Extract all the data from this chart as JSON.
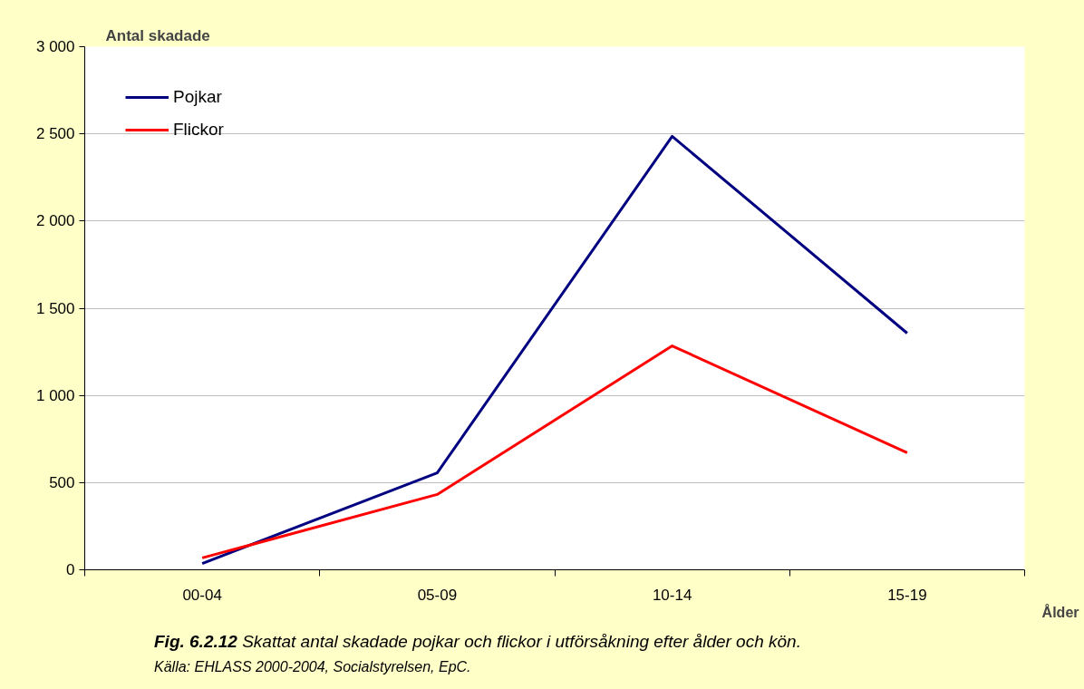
{
  "chart_data": {
    "type": "line",
    "ylabel": "Antal skadade",
    "xlabel": "Ålder",
    "categories": [
      "00-04",
      "05-09",
      "10-14",
      "15-19"
    ],
    "series": [
      {
        "name": "Pojkar",
        "color": "#000080",
        "values": [
          36,
          556,
          2486,
          1357
        ]
      },
      {
        "name": "Flickor",
        "color": "#ff0000",
        "values": [
          68,
          432,
          1284,
          671
        ]
      }
    ],
    "ylim": [
      0,
      3000
    ],
    "yticks": [
      {
        "value": 0,
        "label": "0"
      },
      {
        "value": 500,
        "label": "500"
      },
      {
        "value": 1000,
        "label": "1 000"
      },
      {
        "value": 1500,
        "label": "1 500"
      },
      {
        "value": 2000,
        "label": "2 000"
      },
      {
        "value": 2500,
        "label": "2 500"
      },
      {
        "value": 3000,
        "label": "3 000"
      }
    ],
    "grid": "y",
    "legend": "top left",
    "marker": "none",
    "line_style": "solid",
    "annotations": [
      "Fig. 6.2.12",
      "Skattat antal skadade pojkar och flickor i utförsåkning efter ålder och kön.",
      "Källa: EHLASS 2000-2004, Socialstyrelsen, EpC."
    ]
  }
}
